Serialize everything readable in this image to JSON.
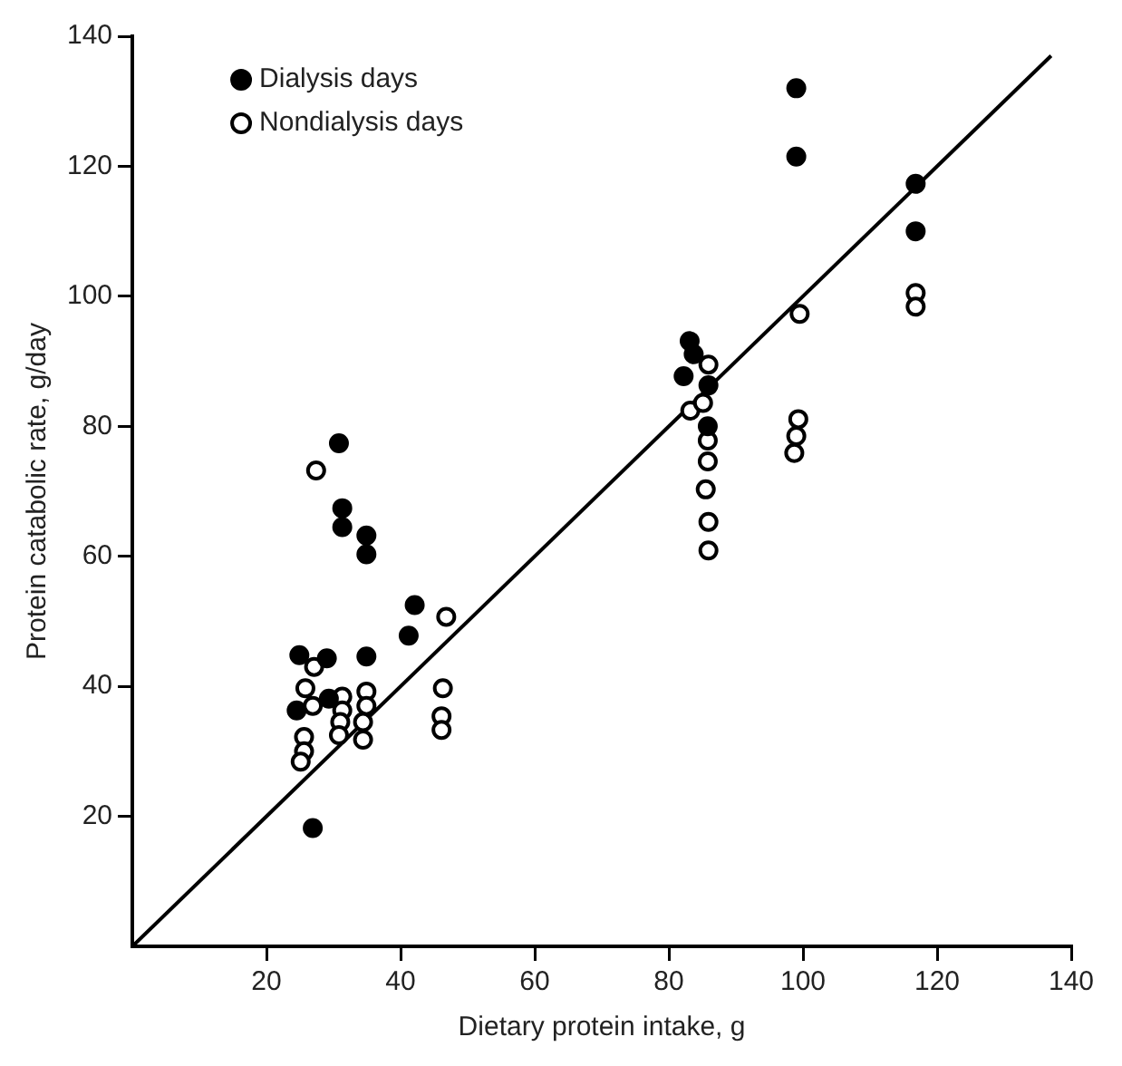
{
  "chart_data": {
    "type": "scatter",
    "xlabel": "Dietary protein intake, g",
    "ylabel": "Protein catabolic rate, g/day",
    "xlim": [
      0,
      140
    ],
    "ylim": [
      0,
      140
    ],
    "xticks": [
      20,
      40,
      60,
      80,
      100,
      120,
      140
    ],
    "yticks": [
      20,
      40,
      60,
      80,
      100,
      120,
      140
    ],
    "grid": false,
    "legend": "top left",
    "marker": "circle",
    "series": [
      {
        "name": "Dialysis days",
        "color": "#000000",
        "x": [
          30.8,
          31.3,
          31.3,
          34.9,
          34.9,
          42.1,
          41.2,
          24.9,
          29,
          34.9,
          24.5,
          29.3,
          26.9,
          83.1,
          83.7,
          82.2,
          85.9,
          85.8,
          99,
          99,
          116.8,
          116.8
        ],
        "values": [
          77.4,
          67.4,
          64.5,
          63.2,
          60.3,
          52.5,
          47.8,
          44.8,
          44.3,
          44.6,
          36.3,
          38.1,
          18.2,
          93.1,
          91.1,
          87.7,
          86.3,
          80,
          132,
          121.5,
          117.3,
          110
        ]
      },
      {
        "name": "Nondialysis days",
        "color": "#ffffff",
        "x": [
          27.4,
          27.1,
          25.8,
          26.9,
          25.6,
          25.6,
          25.1,
          31.3,
          31.3,
          31,
          30.8,
          34.9,
          34.9,
          34.4,
          34.4,
          46.8,
          46.3,
          46.1,
          46.1,
          85.9,
          83.2,
          85.1,
          85.8,
          85.8,
          85.5,
          85.9,
          85.9,
          99.3,
          99,
          98.7,
          99.5,
          116.8,
          116.8
        ],
        "values": [
          73.2,
          43,
          39.7,
          37,
          32.2,
          30,
          28.4,
          38.4,
          36.3,
          34.5,
          32.5,
          39.2,
          37,
          34.5,
          31.8,
          50.7,
          39.7,
          35.4,
          33.3,
          89.5,
          82.4,
          83.6,
          77.8,
          74.6,
          70.3,
          65.3,
          60.9,
          81.1,
          78.5,
          75.9,
          97.3,
          100.5,
          98.4
        ]
      },
      {
        "type": "line",
        "marker": "none",
        "color": "#000000",
        "x": [
          0,
          137
        ],
        "values": [
          0,
          137
        ]
      }
    ]
  }
}
